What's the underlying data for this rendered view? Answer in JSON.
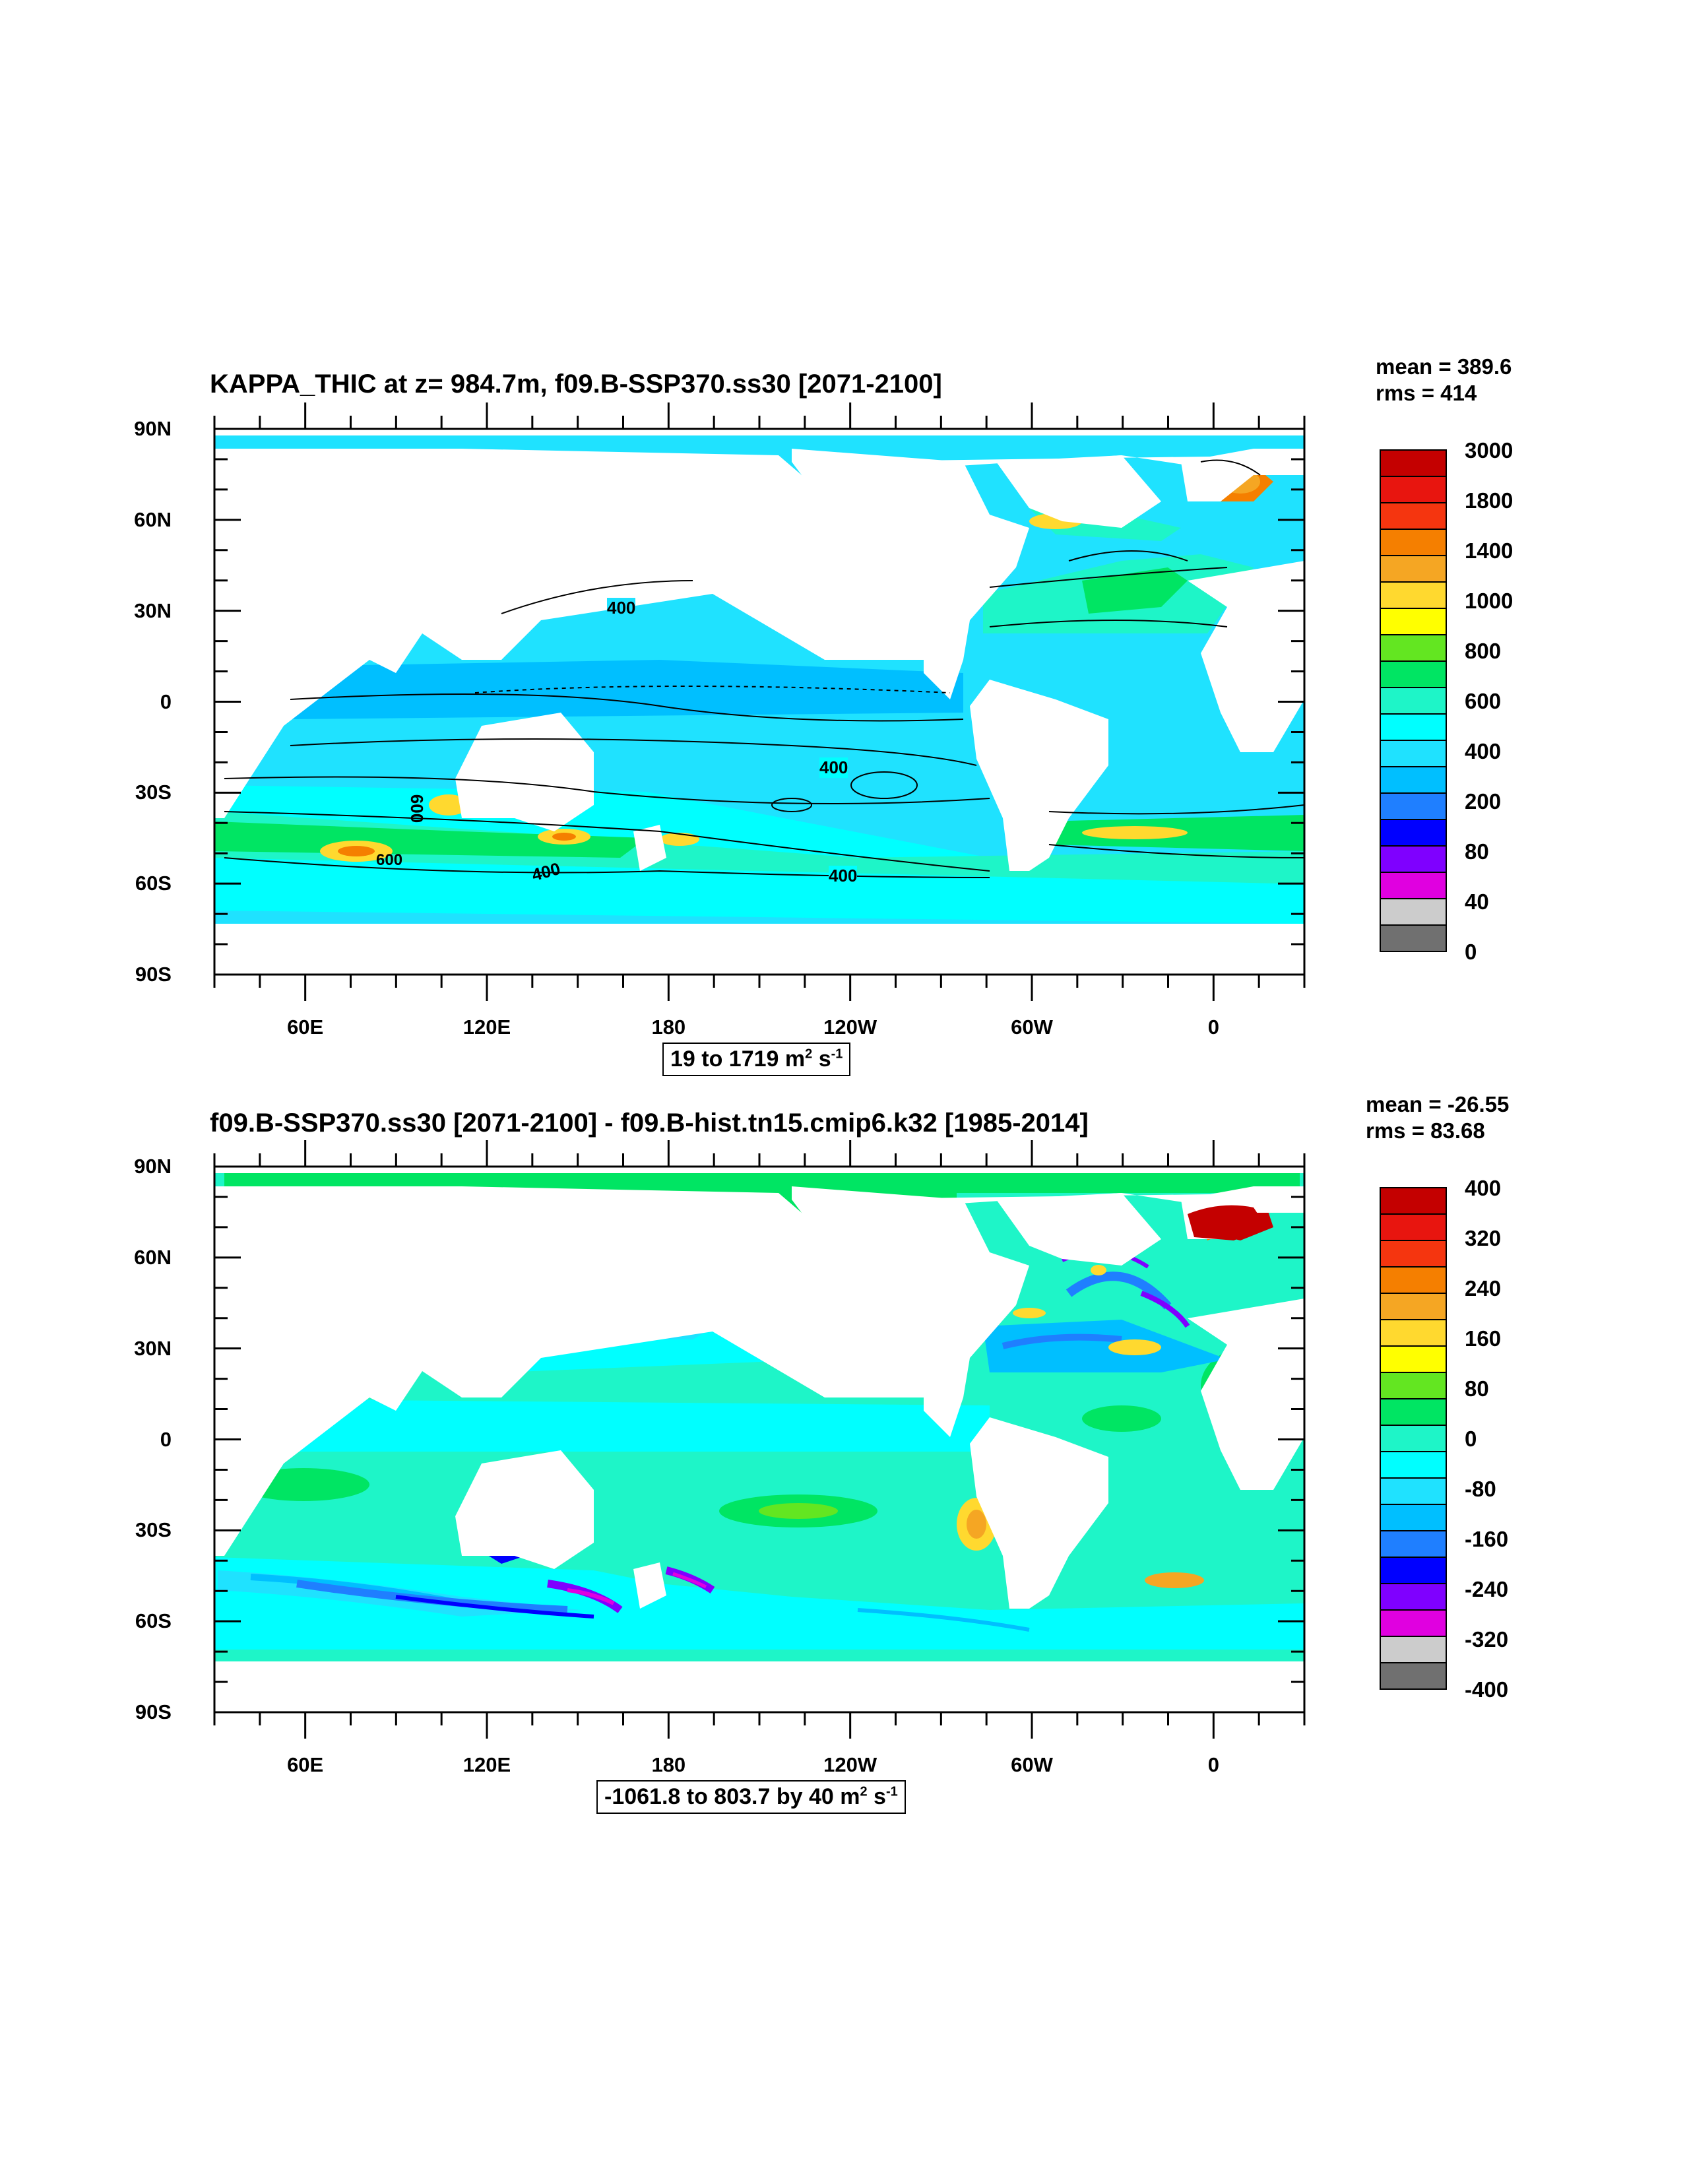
{
  "panels": [
    {
      "title": "KAPPA_THIC at z= 984.7m, f09.B-SSP370.ss30 [2071-2100]",
      "stats": {
        "mean": "mean = 389.6",
        "rms": "rms = 414"
      },
      "range_note": {
        "text": "19 to 1719 m",
        "sup1": "2",
        "mid": " s",
        "sup2": "-1"
      },
      "colorbar": {
        "labels": [
          "3000",
          "1800",
          "1400",
          "1000",
          "800",
          "600",
          "400",
          "200",
          "80",
          "40",
          "0"
        ],
        "colors": [
          "#c40000",
          "#e8150f",
          "#f5350f",
          "#f57f00",
          "#f5a623",
          "#ffd92f",
          "#ffff00",
          "#63e621",
          "#00e563",
          "#1ef5c8",
          "#00ffff",
          "#1fe2ff",
          "#00bfff",
          "#1f7fff",
          "#0000ff",
          "#7f00ff",
          "#e000e0",
          "#cccccc",
          "#707070"
        ]
      },
      "contour_labels": [
        "400",
        "400",
        "400",
        "600",
        "600",
        "400"
      ]
    },
    {
      "title": "f09.B-SSP370.ss30 [2071-2100] - f09.B-hist.tn15.cmip6.k32 [1985-2014]",
      "stats": {
        "mean": "mean = -26.55",
        "rms": "rms = 83.68"
      },
      "range_note": {
        "text": "-1061.8 to 803.7 by 40 m",
        "sup1": "2",
        "mid": " s",
        "sup2": "-1"
      },
      "colorbar": {
        "labels": [
          "400",
          "320",
          "240",
          "160",
          "80",
          "0",
          "-80",
          "-160",
          "-240",
          "-320",
          "-400"
        ],
        "colors": [
          "#c40000",
          "#e8150f",
          "#f5350f",
          "#f57f00",
          "#f5a623",
          "#ffd92f",
          "#ffff00",
          "#63e621",
          "#00e563",
          "#1ef5c8",
          "#00ffff",
          "#1fe2ff",
          "#00bfff",
          "#1f7fff",
          "#0000ff",
          "#7f00ff",
          "#e000e0",
          "#cccccc",
          "#707070"
        ]
      }
    }
  ],
  "axes": {
    "y_labels": [
      "90N",
      "60N",
      "30N",
      "0",
      "30S",
      "60S",
      "90S"
    ],
    "y_values": [
      90,
      60,
      30,
      0,
      -30,
      -60,
      -90
    ],
    "x_labels": [
      "60E",
      "120E",
      "180",
      "120W",
      "60W",
      "0"
    ],
    "x_values": [
      60,
      120,
      180,
      240,
      300,
      360
    ],
    "x_range": [
      30,
      390
    ]
  },
  "chart_data": [
    {
      "type": "heatmap",
      "title": "KAPPA_THIC at z= 984.7m, f09.B-SSP370.ss30 [2071-2100]",
      "xlabel": "",
      "ylabel": "",
      "xlim": [
        "30E",
        "30E"
      ],
      "ylim": [
        -90,
        90
      ],
      "x_ticks": [
        "60E",
        "120E",
        "180",
        "120W",
        "60W",
        "0"
      ],
      "y_ticks": [
        "90N",
        "60N",
        "30N",
        "0",
        "30S",
        "60S",
        "90S"
      ],
      "levels": [
        0,
        40,
        80,
        200,
        400,
        600,
        800,
        1000,
        1400,
        1800,
        3000
      ],
      "mean": 389.6,
      "rms": 414,
      "range": [
        19,
        1719
      ],
      "units": "m2 s-1",
      "contour_labels": [
        400,
        400,
        400,
        600,
        600,
        400
      ]
    },
    {
      "type": "heatmap",
      "title": "f09.B-SSP370.ss30 [2071-2100] - f09.B-hist.tn15.cmip6.k32 [1985-2014]",
      "xlabel": "",
      "ylabel": "",
      "xlim": [
        "30E",
        "30E"
      ],
      "ylim": [
        -90,
        90
      ],
      "x_ticks": [
        "60E",
        "120E",
        "180",
        "120W",
        "60W",
        "0"
      ],
      "y_ticks": [
        "90N",
        "60N",
        "30N",
        "0",
        "30S",
        "60S",
        "90S"
      ],
      "levels": [
        -400,
        -320,
        -240,
        -160,
        -80,
        0,
        80,
        160,
        240,
        320,
        400
      ],
      "mean": -26.55,
      "rms": 83.68,
      "range": [
        -1061.8,
        803.7
      ],
      "interval": 40,
      "units": "m2 s-1"
    }
  ]
}
